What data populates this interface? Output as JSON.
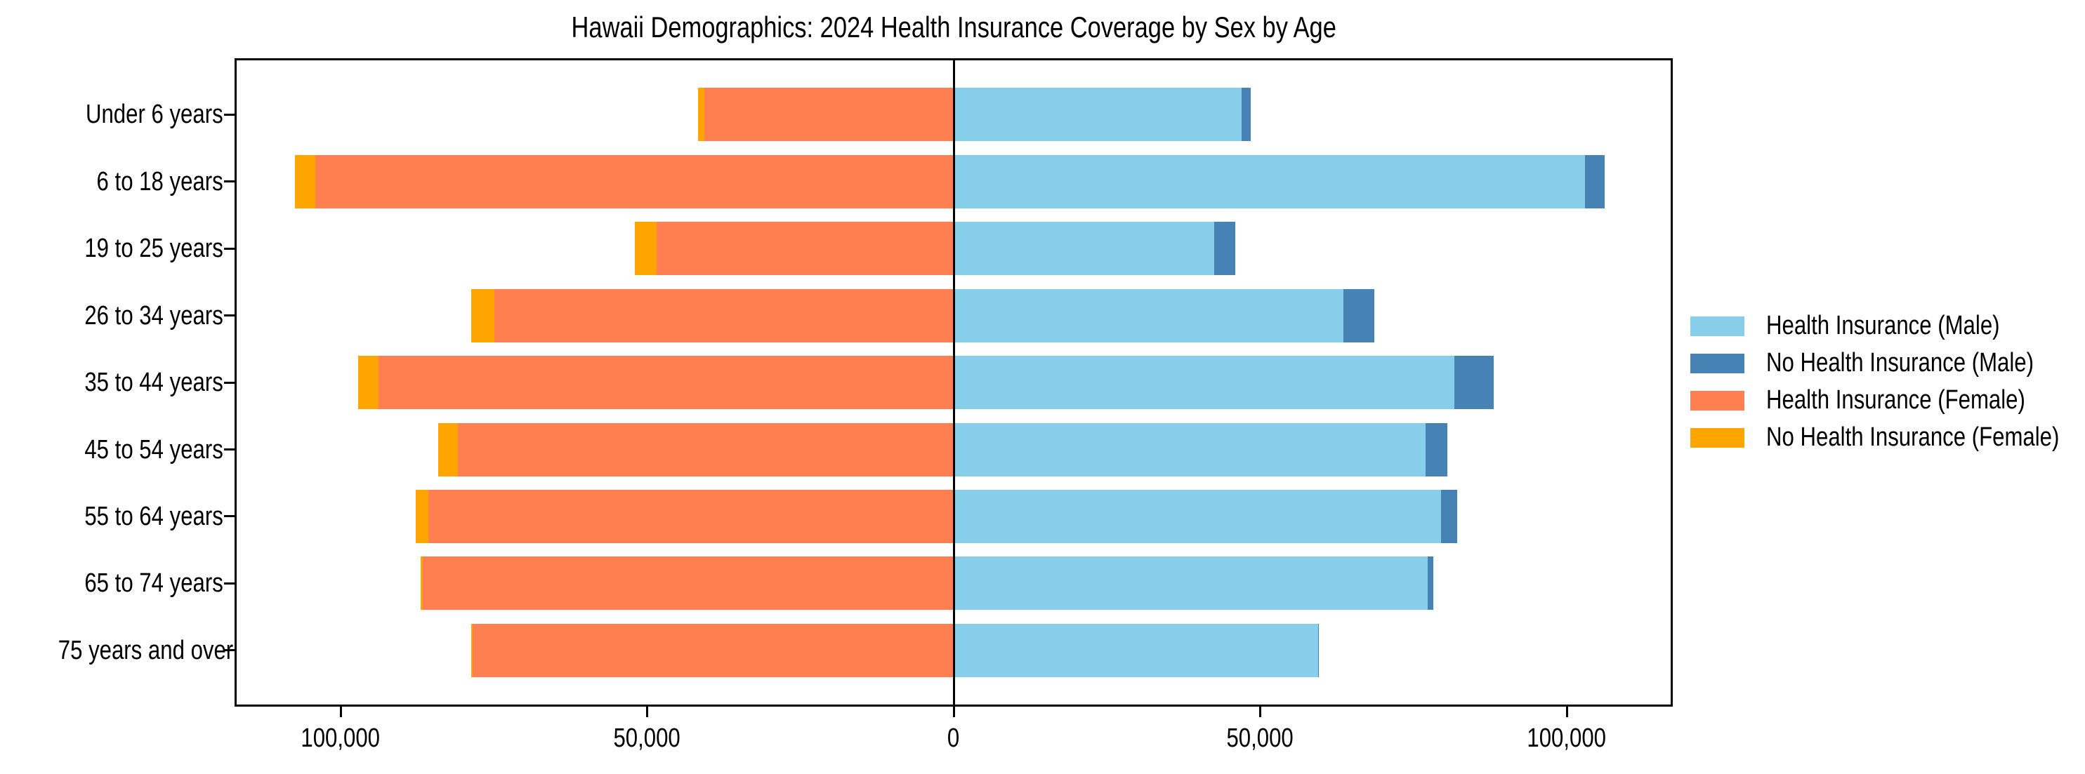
{
  "title": "Hawaii Demographics: 2024 Health Insurance Coverage by Sex by Age",
  "colors": {
    "male_insured": "#87CEEB",
    "male_uninsured": "#4682B4",
    "female_insured": "#FF7F50",
    "female_uninsured": "#FFA500",
    "axis": "#000000",
    "background": "#FFFFFF"
  },
  "chart_data": {
    "type": "bar",
    "variant": "population-pyramid-horizontal-stacked",
    "title": "Hawaii Demographics: 2024 Health Insurance Coverage by Sex by Age",
    "categories": [
      "Under 6 years",
      "6 to 18 years",
      "19 to 25 years",
      "26 to 34 years",
      "35 to 44 years",
      "45 to 54 years",
      "55 to 64 years",
      "65 to 74 years",
      "75 years and over"
    ],
    "series": [
      {
        "name": "Health Insurance (Male)",
        "side": "right",
        "stack_order": 1,
        "color": "#87CEEB",
        "values": [
          47000,
          103000,
          42500,
          63600,
          81700,
          77000,
          79500,
          77300,
          59400
        ]
      },
      {
        "name": "No Health Insurance (Male)",
        "side": "right",
        "stack_order": 2,
        "color": "#4682B4",
        "values": [
          1500,
          3200,
          3400,
          5000,
          6400,
          3500,
          2600,
          900,
          200
        ]
      },
      {
        "name": "Health Insurance (Female)",
        "side": "left",
        "stack_order": 1,
        "color": "#FF7F50",
        "values": [
          40700,
          104100,
          48500,
          74900,
          93800,
          80900,
          85700,
          86600,
          78500
        ]
      },
      {
        "name": "No Health Insurance (Female)",
        "side": "left",
        "stack_order": 2,
        "color": "#FFA500",
        "values": [
          1000,
          3400,
          3500,
          3800,
          3300,
          3200,
          2100,
          300,
          250
        ]
      }
    ],
    "x_ticks": [
      {
        "value": -100000,
        "label": "100,000"
      },
      {
        "value": -50000,
        "label": "50,000"
      },
      {
        "value": 0,
        "label": "0"
      },
      {
        "value": 50000,
        "label": "50,000"
      },
      {
        "value": 100000,
        "label": "100,000"
      }
    ],
    "xlim": [
      -117300,
      117300
    ],
    "xlabel": "",
    "ylabel": "",
    "grid": false,
    "legend_position": "center-right-outside",
    "legend": [
      {
        "label": "Health Insurance (Male)",
        "color": "#87CEEB"
      },
      {
        "label": "No Health Insurance (Male)",
        "color": "#4682B4"
      },
      {
        "label": "Health Insurance (Female)",
        "color": "#FF7F50"
      },
      {
        "label": "No Health Insurance (Female)",
        "color": "#FFA500"
      }
    ]
  }
}
